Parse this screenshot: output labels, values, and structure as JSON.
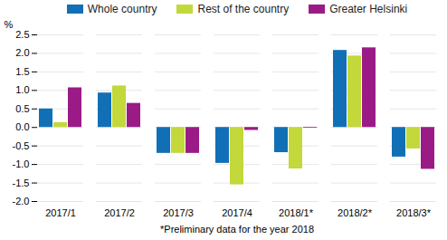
{
  "chart_data": {
    "type": "bar",
    "categories": [
      "2017/1",
      "2017/2",
      "2017/3",
      "2017/4",
      "2018/1*",
      "2018/2*",
      "2018/3*"
    ],
    "series": [
      {
        "name": "Whole country",
        "color": "#1170b5",
        "values": [
          0.5,
          0.93,
          -0.7,
          -0.97,
          -0.68,
          2.08,
          -0.8
        ]
      },
      {
        "name": "Rest of the country",
        "color": "#c3d83a",
        "values": [
          0.13,
          1.12,
          -0.7,
          -1.55,
          -1.12,
          1.93,
          -0.58
        ]
      },
      {
        "name": "Greater Helsinki",
        "color": "#9b1b86",
        "values": [
          1.07,
          0.65,
          -0.7,
          -0.08,
          -0.02,
          2.15,
          -1.13
        ]
      }
    ],
    "y_label": "%",
    "x_label": "*Preliminary data for the year 2018",
    "ylim": [
      -2.0,
      2.5
    ],
    "yticks": [
      {
        "value": -2.0,
        "label": "-2.0"
      },
      {
        "value": -1.5,
        "label": "-1.5"
      },
      {
        "value": -1.0,
        "label": "-1.0"
      },
      {
        "value": -0.5,
        "label": "-0.5"
      },
      {
        "value": 0,
        "label": "0.0"
      },
      {
        "value": 0.5,
        "label": "0.5"
      },
      {
        "value": 1.0,
        "label": "1.0"
      },
      {
        "value": 1.5,
        "label": "1.5"
      },
      {
        "value": 2.0,
        "label": "2.0"
      },
      {
        "value": 2.5,
        "label": "2.5"
      }
    ],
    "grid": true,
    "legend": "top"
  }
}
